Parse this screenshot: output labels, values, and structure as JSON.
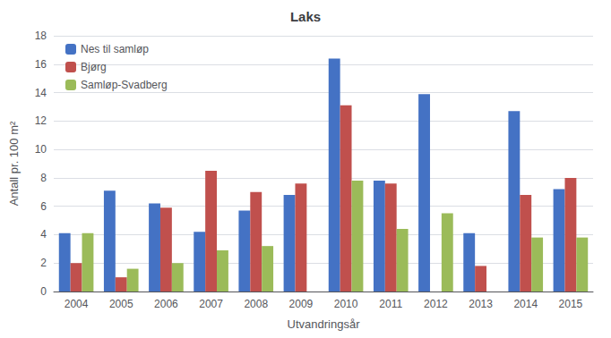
{
  "chart_data": {
    "type": "bar",
    "title": "Laks",
    "xlabel": "Utvandringsår",
    "ylabel": "Antall pr. 100 m²",
    "categories": [
      "2004",
      "2005",
      "2006",
      "2007",
      "2008",
      "2009",
      "2010",
      "2011",
      "2012",
      "2013",
      "2014",
      "2015"
    ],
    "series": [
      {
        "name": "Nes til samløp",
        "color": "#4472C4",
        "values": [
          4.1,
          7.1,
          6.2,
          4.2,
          5.7,
          6.8,
          16.4,
          7.8,
          13.9,
          4.1,
          12.7,
          7.2
        ]
      },
      {
        "name": "Bjørg",
        "color": "#C0504D",
        "values": [
          2.0,
          1.0,
          5.9,
          8.5,
          7.0,
          7.6,
          13.1,
          7.6,
          0,
          1.8,
          6.8,
          8.0
        ]
      },
      {
        "name": "Samløp-Svadberg",
        "color": "#9BBB59",
        "values": [
          4.1,
          1.6,
          2.0,
          2.9,
          3.2,
          0,
          7.8,
          4.4,
          5.5,
          0,
          3.8,
          3.8
        ]
      }
    ],
    "ylim": [
      0,
      18
    ],
    "yticks": [
      0,
      2,
      4,
      6,
      8,
      10,
      12,
      14,
      16,
      18
    ],
    "grid": true,
    "legend": "upper left"
  }
}
